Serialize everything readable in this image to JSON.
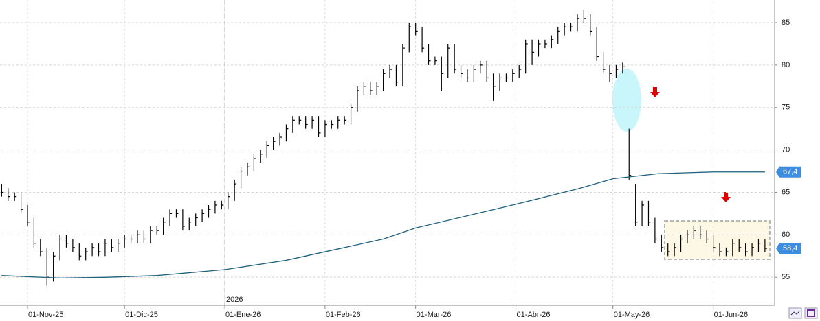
{
  "chart_data": {
    "type": "hlc",
    "x": [
      -8,
      -6,
      -4,
      -2,
      0,
      2,
      4,
      6,
      8,
      10,
      12,
      14,
      16,
      18,
      20,
      22,
      24,
      26,
      28,
      30,
      32,
      34,
      36,
      38,
      40,
      42,
      44,
      46,
      48,
      50,
      52,
      54,
      56,
      58,
      60,
      62,
      64,
      66,
      68,
      70,
      72,
      74,
      76,
      78,
      80,
      82,
      84,
      86,
      88,
      90,
      92,
      94,
      96,
      98,
      100,
      102,
      104,
      106,
      108,
      110,
      112,
      114,
      116,
      118,
      120,
      122,
      124,
      126,
      128,
      130,
      132,
      134,
      136,
      138,
      140,
      142,
      144,
      146,
      148,
      150,
      152,
      154,
      156,
      158,
      160,
      162,
      164,
      166,
      168,
      170,
      172,
      174,
      176,
      178,
      180,
      182,
      184,
      186,
      188,
      190,
      192,
      194,
      196,
      198,
      200,
      202,
      204,
      206,
      208,
      210,
      212,
      214,
      216,
      218,
      220,
      222,
      224,
      226,
      228
    ],
    "high": [
      66,
      65.5,
      65,
      65,
      63.5,
      62,
      59.5,
      58.5,
      58,
      60,
      60,
      59.5,
      59,
      58.5,
      59,
      59,
      59.5,
      59.5,
      59.5,
      60,
      60,
      60.5,
      60.5,
      61,
      61,
      62,
      63,
      63,
      63,
      62,
      62.5,
      63,
      63.5,
      64,
      64,
      65,
      66.5,
      68,
      68.5,
      69.5,
      70,
      71,
      71.5,
      72,
      73,
      74,
      74,
      74,
      74,
      74,
      73.5,
      73.5,
      74,
      74,
      75.5,
      77.5,
      78,
      78,
      78,
      79.5,
      80,
      80,
      82.5,
      85,
      85,
      84.5,
      82.5,
      81,
      81,
      82.5,
      82.5,
      80,
      79.5,
      80,
      80.5,
      80.5,
      79,
      79,
      79,
      79.5,
      80,
      83,
      83,
      83,
      83,
      83.5,
      84.5,
      85,
      85,
      86,
      86.5,
      86,
      84.5,
      81.5,
      80,
      80,
      80.3,
      72.5,
      66,
      64,
      64,
      62,
      60,
      59,
      59,
      60,
      60.5,
      61,
      61,
      60.5,
      60,
      59,
      58.5,
      59.5,
      59.5,
      59,
      59,
      59.5,
      59.5
    ],
    "low": [
      64.5,
      64,
      64,
      62.5,
      61,
      58.5,
      57.5,
      54,
      54.5,
      57,
      58.5,
      58,
      57,
      57,
      57.5,
      57.5,
      57.5,
      58,
      58,
      58.5,
      59,
      59,
      59,
      59,
      60,
      60,
      61,
      62,
      60.5,
      60.5,
      61,
      61.5,
      62,
      62.5,
      63,
      63,
      64,
      65.5,
      67,
      67.5,
      68.5,
      69,
      70,
      70.5,
      71,
      72,
      73,
      72.5,
      72.5,
      71.5,
      71.5,
      72.5,
      72.5,
      73,
      73,
      74.5,
      76.5,
      76.5,
      76.5,
      77,
      78.5,
      77.5,
      77.5,
      81.5,
      83.5,
      81.5,
      80,
      80,
      77,
      78.5,
      79,
      78.5,
      78,
      78,
      79,
      78,
      75.8,
      77,
      78,
      78,
      78.5,
      79,
      80,
      81,
      82,
      82,
      82.5,
      83.5,
      84,
      84,
      85,
      83.5,
      80.5,
      79,
      78,
      78.5,
      79,
      66.5,
      61,
      61,
      61,
      59,
      58,
      57.5,
      57.5,
      58,
      59,
      59.5,
      59.5,
      59,
      58,
      57.5,
      57.5,
      57.5,
      58,
      57.5,
      57.5,
      58,
      58
    ],
    "close": [
      65,
      64.5,
      64.5,
      63,
      61.5,
      59,
      58,
      55,
      57.5,
      59.5,
      59,
      58.5,
      57.5,
      58,
      58.5,
      58,
      59,
      58.5,
      59,
      59.5,
      59.5,
      60,
      59.5,
      60.5,
      60.5,
      61.5,
      62.5,
      62.5,
      61,
      61.5,
      62,
      62.5,
      63,
      63.5,
      63.5,
      64.5,
      66,
      67.5,
      68,
      69,
      69.5,
      70.5,
      71,
      71.5,
      72.5,
      73.5,
      73.5,
      73,
      73.5,
      72,
      73,
      73,
      73.5,
      73.5,
      75,
      77,
      77.5,
      77,
      77.5,
      79,
      79.5,
      78,
      82,
      84.5,
      84,
      82,
      80.5,
      80.5,
      79,
      82,
      79.5,
      79,
      78.5,
      79.5,
      80,
      78.5,
      77.5,
      78.5,
      78.5,
      79,
      79.5,
      82.5,
      81.5,
      82.5,
      82.5,
      83,
      84,
      84.5,
      84.5,
      85.5,
      85.5,
      84,
      81,
      79.5,
      79,
      79.5,
      79.8,
      67,
      61.5,
      63.5,
      61.5,
      59.5,
      58.5,
      58,
      58.5,
      59.5,
      60,
      60.5,
      60,
      59.5,
      58.5,
      58,
      58,
      59,
      58.5,
      58,
      58.5,
      59,
      58.4
    ],
    "bar_color": "#000000",
    "average": {
      "color": "#1f5f7f",
      "x": [
        -8,
        10,
        25,
        40,
        61,
        80,
        92,
        110,
        120,
        140,
        151,
        170,
        181,
        195,
        212,
        228
      ],
      "values": [
        55.2,
        54.9,
        55,
        55.2,
        55.9,
        57,
        58,
        59.5,
        60.8,
        62.6,
        63.6,
        65.4,
        66.6,
        67.2,
        67.4,
        67.4
      ]
    },
    "price_labels": [
      {
        "value": 67.4,
        "label": "67,4"
      },
      {
        "value": 58.4,
        "label": "58,4"
      }
    ],
    "year_marker": {
      "value": 61,
      "label": "2026"
    },
    "xlim": [
      -8.5,
      231
    ],
    "ylim": [
      51.7,
      87.67
    ],
    "xticks": [
      {
        "value": 0,
        "label": "01-Nov-25"
      },
      {
        "value": 30,
        "label": "01-Dic-25"
      },
      {
        "value": 61,
        "label": "01-Ene-26"
      },
      {
        "value": 92,
        "label": "01-Feb-26"
      },
      {
        "value": 120,
        "label": "01-Mar-26"
      },
      {
        "value": 151,
        "label": "01-Abr-26"
      },
      {
        "value": 181,
        "label": "01-May-26"
      },
      {
        "value": 212,
        "label": "01-Jun-26"
      }
    ],
    "yticks": [
      55,
      60,
      65,
      70,
      75,
      80,
      85
    ],
    "grid": true
  }
}
